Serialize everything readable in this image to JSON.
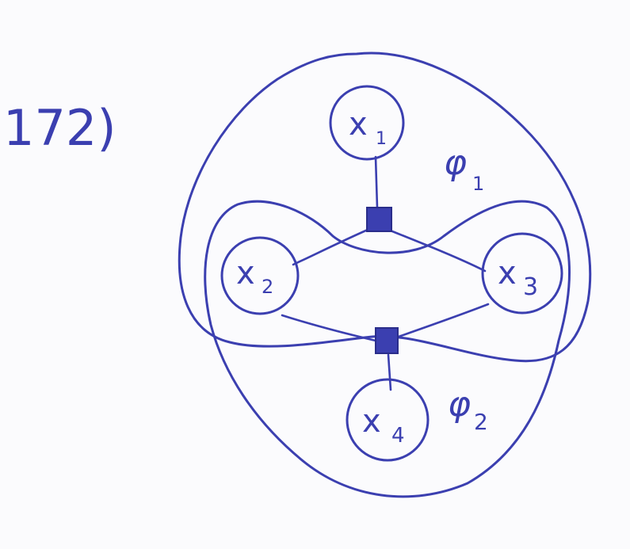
{
  "problem_number": "172)",
  "variables": [
    {
      "id": "x1",
      "label": "x",
      "subscript": "1"
    },
    {
      "id": "x2",
      "label": "x",
      "subscript": "2"
    },
    {
      "id": "x3",
      "label": "x",
      "subscript": "3"
    },
    {
      "id": "x4",
      "label": "x",
      "subscript": "4"
    }
  ],
  "factors": [
    {
      "id": "f1",
      "connects": [
        "x1",
        "x2",
        "x3"
      ]
    },
    {
      "id": "f2",
      "connects": [
        "x2",
        "x3",
        "x4"
      ]
    }
  ],
  "regions": [
    {
      "id": "phi1",
      "label": "φ",
      "subscript": "1",
      "contains": [
        "x1",
        "x2",
        "x3",
        "f1"
      ]
    },
    {
      "id": "phi2",
      "label": "φ",
      "subscript": "2",
      "contains": [
        "x2",
        "x3",
        "x4",
        "f2"
      ]
    }
  ],
  "ink_color": "#3b3fb0"
}
